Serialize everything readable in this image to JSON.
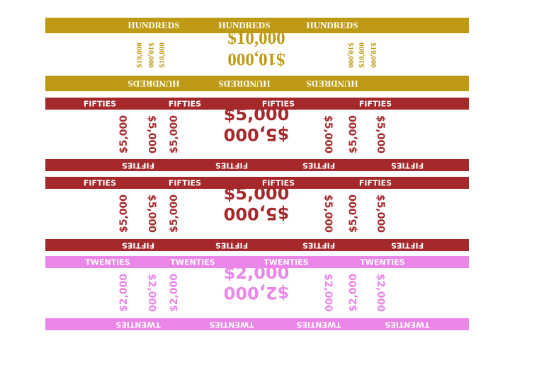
{
  "straps": [
    {
      "denomination": "HUNDREDS",
      "amount": "$10,000",
      "color": "#be9a14",
      "style": "serif",
      "top_labels": 3,
      "bottom_labels": 3
    },
    {
      "denomination": "FIFTIES",
      "amount": "$5,000",
      "color": "#a5282b",
      "style": "sans",
      "top_labels": 4,
      "bottom_labels": 4
    },
    {
      "denomination": "FIFTIES",
      "amount": "$5,000",
      "color": "#a5282b",
      "style": "sans",
      "top_labels": 4,
      "bottom_labels": 4
    },
    {
      "denomination": "TWENTIES",
      "amount": "$2,000",
      "color": "#ea86e8",
      "style": "sans",
      "top_labels": 4,
      "bottom_labels": 4
    }
  ]
}
